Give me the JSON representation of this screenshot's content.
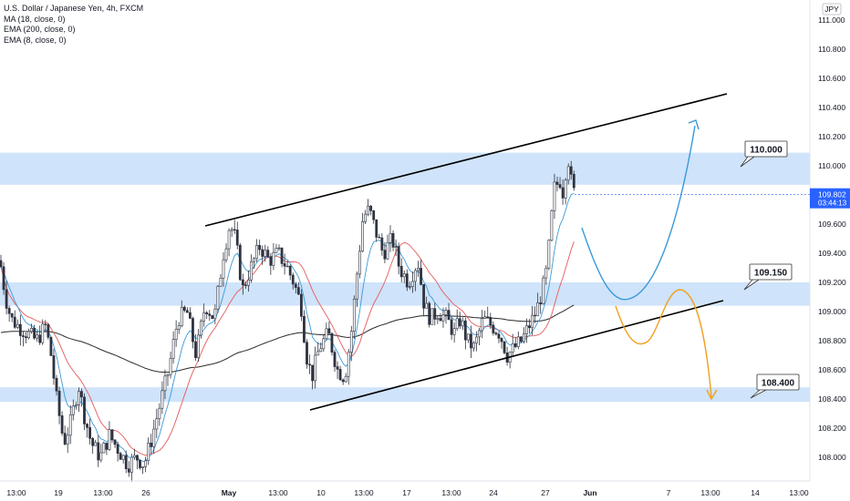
{
  "title": "U.S. Dollar / Japanese Yen, 4h, FXCM",
  "indicators": [
    "MA (18, close, 0)",
    "EMA (200, close, 0)",
    "EMA (8, close, 0)"
  ],
  "currency": "JPY",
  "price_label": {
    "price": "109.802",
    "countdown": "03:44:13"
  },
  "colors": {
    "zone": "#cfe3fa",
    "up": "#2f3340",
    "down": "#2f3340",
    "ma18": "#e45b5b",
    "ema200": "#2a2a2a",
    "ema8": "#3a9ad9",
    "blue_path": "#3a9ad9",
    "orange_path": "#f0a020",
    "price_tag": "#2962ff"
  },
  "chart_data": {
    "type": "candlestick",
    "symbol": "USDJPY",
    "timeframe": "4h",
    "ylim": [
      107.9,
      111.2
    ],
    "y_ticks": [
      "111.000",
      "110.800",
      "110.600",
      "110.400",
      "110.200",
      "110.000",
      "109.800",
      "109.600",
      "109.400",
      "109.200",
      "109.000",
      "108.800",
      "108.600",
      "108.400",
      "108.200",
      "108.000"
    ],
    "x_ticks": [
      "13:00",
      "19",
      "13:00",
      "26",
      "May",
      "13:00",
      "10",
      "13:00",
      "17",
      "13:00",
      "24",
      "27",
      "Jun",
      "7",
      "13:00",
      "14",
      "13:00"
    ],
    "zones": [
      {
        "low": 109.87,
        "high": 110.09
      },
      {
        "low": 109.04,
        "high": 109.2
      },
      {
        "low": 108.38,
        "high": 108.48
      }
    ],
    "level_labels": [
      "110.000",
      "109.150",
      "108.400"
    ],
    "last_price": 109.802
  }
}
